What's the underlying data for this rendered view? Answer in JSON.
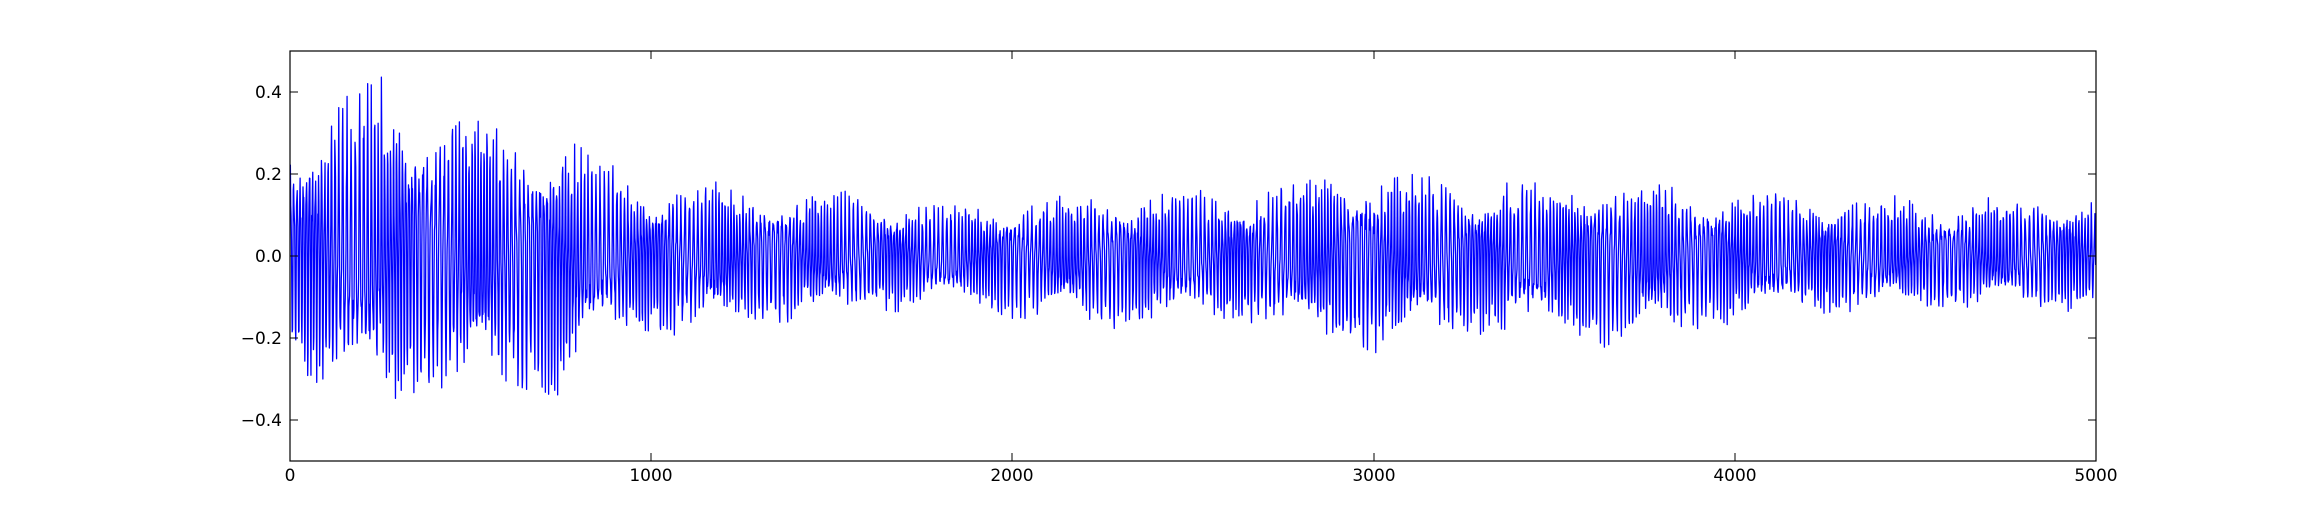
{
  "chart_data": {
    "type": "line",
    "title": "",
    "xlabel": "",
    "ylabel": "",
    "xlim": [
      0,
      5000
    ],
    "ylim": [
      -0.5,
      0.5
    ],
    "x_ticks": [
      0,
      1000,
      2000,
      3000,
      4000,
      5000
    ],
    "y_ticks": [
      -0.4,
      -0.2,
      0.0,
      0.2,
      0.4
    ],
    "x_tick_labels": [
      "0",
      "1000",
      "2000",
      "3000",
      "4000",
      "5000"
    ],
    "y_tick_labels": [
      "−0.4",
      "−0.2",
      "0.0",
      "0.2",
      "0.4"
    ],
    "grid": false,
    "legend": false,
    "series": [
      {
        "color": "#0000ff",
        "n_points": 5000,
        "description_of_shape": "oscillating signal",
        "envelope": [
          {
            "x": 0,
            "max": 0.33,
            "min": -0.32
          },
          {
            "x": 235,
            "max": 0.47,
            "min": -0.4
          },
          {
            "x": 500,
            "max": 0.38,
            "min": -0.37
          },
          {
            "x": 750,
            "max": 0.32,
            "min": -0.38
          },
          {
            "x": 860,
            "max": 0.25,
            "min": -0.22
          },
          {
            "x": 1000,
            "max": 0.19,
            "min": -0.22
          },
          {
            "x": 1500,
            "max": 0.17,
            "min": -0.16
          },
          {
            "x": 1800,
            "max": 0.13,
            "min": -0.13
          },
          {
            "x": 2200,
            "max": 0.16,
            "min": -0.19
          },
          {
            "x": 2600,
            "max": 0.17,
            "min": -0.17
          },
          {
            "x": 2950,
            "max": 0.23,
            "min": -0.26
          },
          {
            "x": 3300,
            "max": 0.2,
            "min": -0.21
          },
          {
            "x": 3650,
            "max": 0.2,
            "min": -0.24
          },
          {
            "x": 4000,
            "max": 0.17,
            "min": -0.17
          },
          {
            "x": 4500,
            "max": 0.15,
            "min": -0.14
          },
          {
            "x": 5000,
            "max": 0.16,
            "min": -0.14
          }
        ]
      }
    ]
  }
}
